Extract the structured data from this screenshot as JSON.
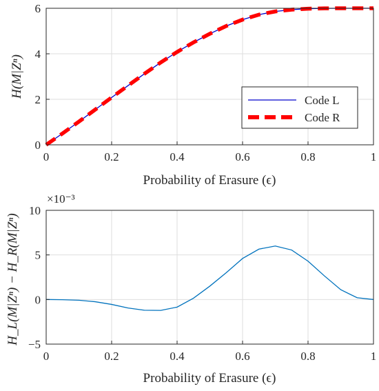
{
  "chart_data": [
    {
      "type": "line",
      "xlabel": "Probability of Erasure (ϵ)",
      "ylabel": "H(M|Zⁿ)",
      "xlim": [
        0,
        1
      ],
      "ylim": [
        0,
        6
      ],
      "xticks": [
        0,
        0.2,
        0.4,
        0.6,
        0.8,
        1
      ],
      "yticks": [
        0,
        2,
        4,
        6
      ],
      "xtick_labels": [
        "0",
        "0.2",
        "0.4",
        "0.6",
        "0.8",
        "1"
      ],
      "ytick_labels": [
        "0",
        "2",
        "4",
        "6"
      ],
      "grid": true,
      "legend": "inside-right",
      "x": [
        0,
        0.05,
        0.1,
        0.15,
        0.2,
        0.25,
        0.3,
        0.35,
        0.4,
        0.45,
        0.5,
        0.55,
        0.6,
        0.65,
        0.7,
        0.75,
        0.8,
        0.85,
        0.9,
        0.95,
        1
      ],
      "series": [
        {
          "name": "Code L",
          "color": "#0000cc",
          "style": "solid",
          "values": [
            0,
            0.5,
            1.02,
            1.55,
            2.08,
            2.6,
            3.12,
            3.62,
            4.08,
            4.5,
            4.88,
            5.22,
            5.5,
            5.72,
            5.86,
            5.94,
            5.98,
            5.995,
            6,
            6,
            6
          ]
        },
        {
          "name": "Code R",
          "color": "#ff0000",
          "style": "dashed",
          "values": [
            0,
            0.5,
            1.02,
            1.55,
            2.08,
            2.6,
            3.12,
            3.62,
            4.08,
            4.5,
            4.88,
            5.22,
            5.5,
            5.72,
            5.86,
            5.94,
            5.98,
            5.995,
            6,
            6,
            6
          ]
        }
      ]
    },
    {
      "type": "line",
      "xlabel": "Probability of Erasure (ϵ)",
      "ylabel": "H_L(M|Zⁿ) − H_R(M|Zⁿ)",
      "xlim": [
        0,
        1
      ],
      "ylim": [
        -5,
        10
      ],
      "scale_label": "×10⁻³",
      "xticks": [
        0,
        0.2,
        0.4,
        0.6,
        0.8,
        1
      ],
      "yticks": [
        -5,
        0,
        5,
        10
      ],
      "xtick_labels": [
        "0",
        "0.2",
        "0.4",
        "0.6",
        "0.8",
        "1"
      ],
      "ytick_labels": [
        "−5",
        "0",
        "5",
        "10"
      ],
      "grid": true,
      "x": [
        0,
        0.05,
        0.1,
        0.15,
        0.2,
        0.25,
        0.3,
        0.35,
        0.4,
        0.45,
        0.5,
        0.55,
        0.6,
        0.65,
        0.7,
        0.75,
        0.8,
        0.85,
        0.9,
        0.95,
        1
      ],
      "series": [
        {
          "color": "#0072bd",
          "style": "solid",
          "values": [
            0,
            -0.02,
            -0.08,
            -0.25,
            -0.55,
            -0.95,
            -1.2,
            -1.22,
            -0.85,
            0.15,
            1.5,
            3.0,
            4.6,
            5.65,
            6.0,
            5.55,
            4.3,
            2.65,
            1.1,
            0.2,
            0
          ]
        }
      ]
    }
  ]
}
